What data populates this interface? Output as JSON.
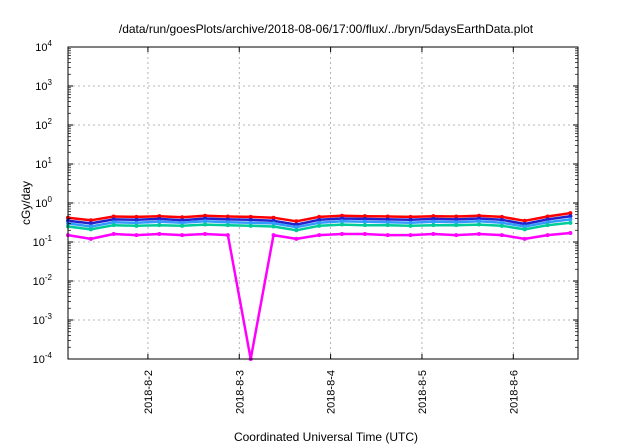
{
  "chart_data": {
    "type": "line",
    "title": "/data/run/goesPlots/archive/2018-08-06/17:00/flux/../bryn/5daysEarthData.plot",
    "xlabel": "Coordinated Universal Time (UTC)",
    "ylabel": "cGy/day",
    "yscale": "log",
    "ylim": [
      0.0001,
      10000
    ],
    "xlim": [
      "2018-08-01T03:00",
      "2018-08-06T17:00"
    ],
    "grid": true,
    "legend": "none",
    "y_ticks": [
      {
        "value": 0.0001,
        "base": "10",
        "exp": "-4"
      },
      {
        "value": 0.001,
        "base": "10",
        "exp": "-3"
      },
      {
        "value": 0.01,
        "base": "10",
        "exp": "-2"
      },
      {
        "value": 0.1,
        "base": "10",
        "exp": "-1"
      },
      {
        "value": 1,
        "base": "10",
        "exp": "0"
      },
      {
        "value": 10,
        "base": "10",
        "exp": "1"
      },
      {
        "value": 100,
        "base": "10",
        "exp": "2"
      },
      {
        "value": 1000,
        "base": "10",
        "exp": "3"
      },
      {
        "value": 10000,
        "base": "10",
        "exp": "4"
      }
    ],
    "x_ticks": [
      "2018-8-2",
      "2018-8-3",
      "2018-8-4",
      "2018-8-5",
      "2018-8-6"
    ],
    "x_tick_times": [
      "2018-08-02T00:00",
      "2018-08-03T00:00",
      "2018-08-04T00:00",
      "2018-08-05T00:00",
      "2018-08-06T00:00"
    ],
    "x": [
      "2018-08-01T03:00",
      "2018-08-01T09:00",
      "2018-08-01T15:00",
      "2018-08-01T21:00",
      "2018-08-02T03:00",
      "2018-08-02T09:00",
      "2018-08-02T15:00",
      "2018-08-02T21:00",
      "2018-08-03T03:00",
      "2018-08-03T09:00",
      "2018-08-03T15:00",
      "2018-08-03T21:00",
      "2018-08-04T03:00",
      "2018-08-04T09:00",
      "2018-08-04T15:00",
      "2018-08-04T21:00",
      "2018-08-05T03:00",
      "2018-08-05T09:00",
      "2018-08-05T15:00",
      "2018-08-05T21:00",
      "2018-08-06T03:00",
      "2018-08-06T09:00",
      "2018-08-06T15:00"
    ],
    "series": [
      {
        "color": "#ff0000",
        "values": [
          0.42,
          0.36,
          0.45,
          0.44,
          0.46,
          0.43,
          0.47,
          0.45,
          0.44,
          0.42,
          0.34,
          0.44,
          0.47,
          0.46,
          0.45,
          0.44,
          0.46,
          0.45,
          0.47,
          0.44,
          0.35,
          0.45,
          0.55
        ]
      },
      {
        "color": "#2222cc",
        "values": [
          0.35,
          0.3,
          0.38,
          0.37,
          0.39,
          0.36,
          0.4,
          0.38,
          0.37,
          0.35,
          0.28,
          0.37,
          0.4,
          0.39,
          0.38,
          0.37,
          0.39,
          0.38,
          0.4,
          0.37,
          0.29,
          0.38,
          0.46
        ]
      },
      {
        "color": "#3399ff",
        "values": [
          0.3,
          0.25,
          0.32,
          0.31,
          0.33,
          0.31,
          0.34,
          0.32,
          0.31,
          0.3,
          0.24,
          0.31,
          0.34,
          0.33,
          0.32,
          0.31,
          0.33,
          0.32,
          0.34,
          0.31,
          0.25,
          0.32,
          0.38
        ]
      },
      {
        "color": "#00cc99",
        "values": [
          0.25,
          0.21,
          0.27,
          0.26,
          0.27,
          0.26,
          0.28,
          0.27,
          0.26,
          0.25,
          0.2,
          0.26,
          0.28,
          0.27,
          0.27,
          0.26,
          0.27,
          0.27,
          0.28,
          0.26,
          0.21,
          0.27,
          0.31
        ]
      },
      {
        "color": "#ff00ff",
        "values": [
          0.15,
          0.12,
          0.16,
          0.15,
          0.16,
          0.15,
          0.16,
          0.15,
          0.0001,
          0.15,
          0.12,
          0.15,
          0.16,
          0.16,
          0.15,
          0.15,
          0.16,
          0.15,
          0.16,
          0.15,
          0.12,
          0.15,
          0.17
        ]
      }
    ]
  }
}
